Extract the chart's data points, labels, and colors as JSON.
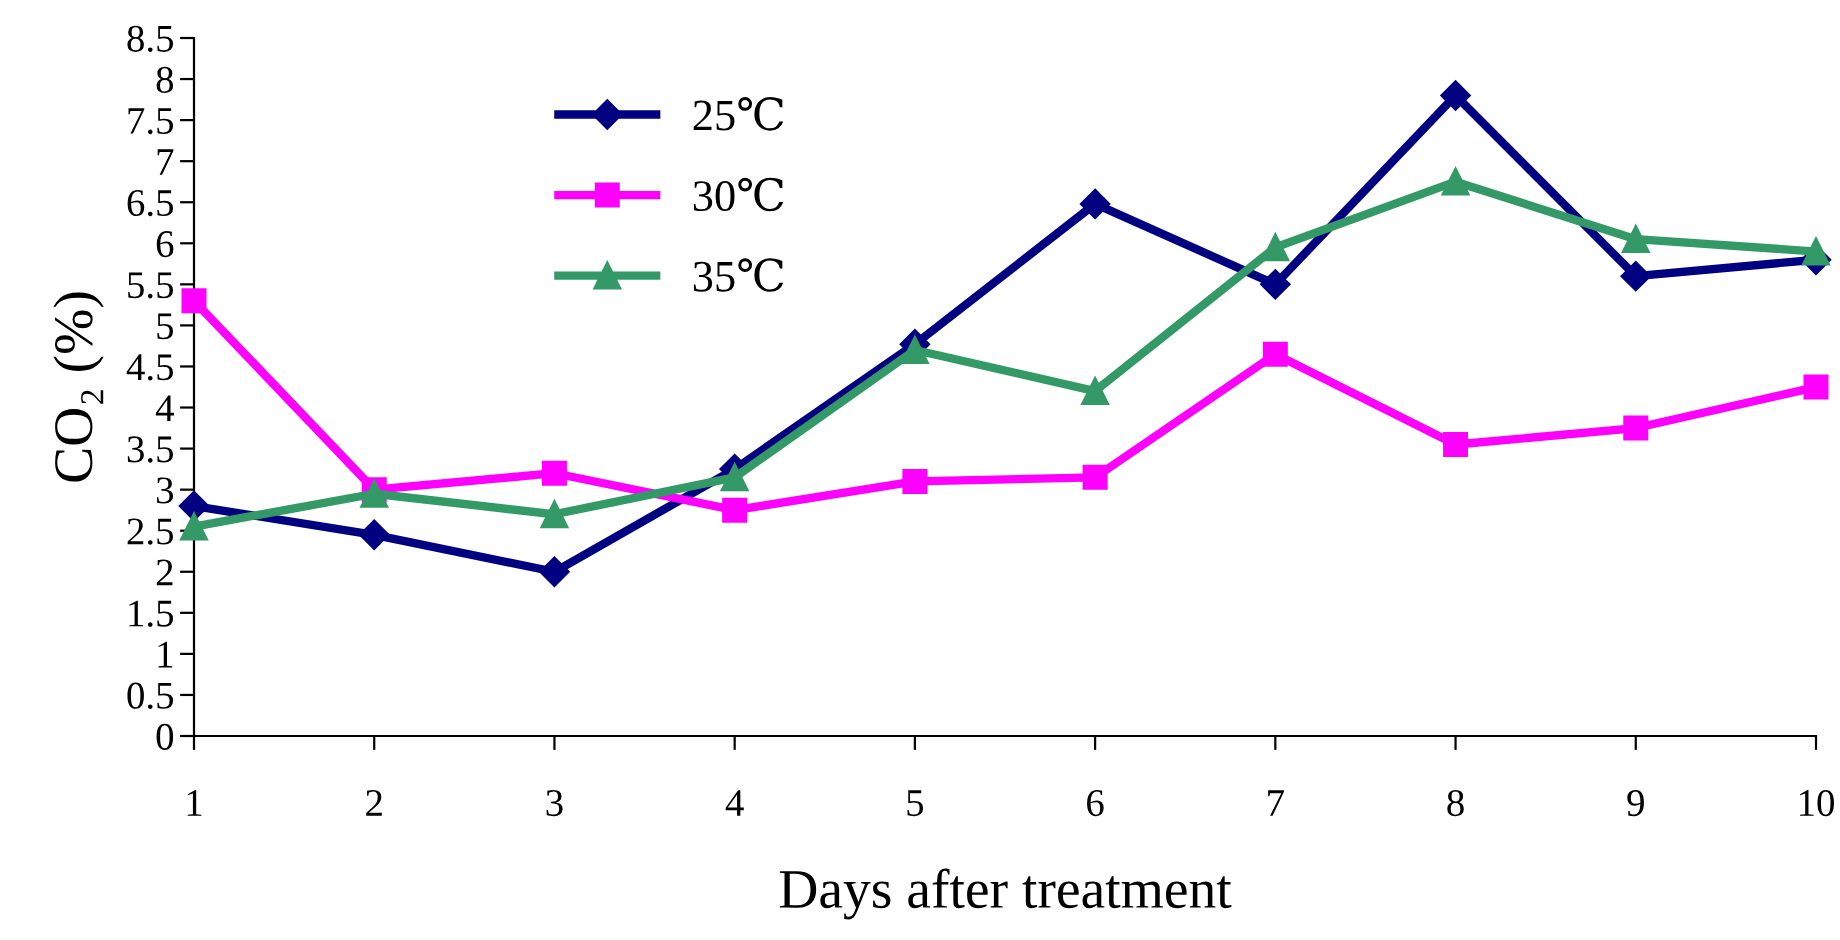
{
  "chart_data": {
    "type": "line",
    "xlabel": "Days after treatment",
    "ylabel": "CO₂ (%)",
    "x": [
      1,
      2,
      3,
      4,
      5,
      6,
      7,
      8,
      9,
      10
    ],
    "xlim": [
      1,
      10
    ],
    "xticks": [
      1,
      2,
      3,
      4,
      5,
      6,
      7,
      8,
      9,
      10
    ],
    "ylim": [
      0,
      8.5
    ],
    "yticks": [
      0,
      0.5,
      1,
      1.5,
      2,
      2.5,
      3,
      3.5,
      4,
      4.5,
      5,
      5.5,
      6,
      6.5,
      7,
      7.5,
      8,
      8.5
    ],
    "grid": false,
    "legend": "top left",
    "line_style": "solid",
    "series": [
      {
        "name": "25℃",
        "color": "#000080",
        "marker": "diamond",
        "values": [
          2.8,
          2.45,
          2.0,
          3.25,
          4.77,
          6.48,
          5.5,
          7.8,
          5.6,
          5.8
        ]
      },
      {
        "name": "30℃",
        "color": "#ff00ff",
        "marker": "square",
        "values": [
          5.3,
          3.0,
          3.2,
          2.75,
          3.1,
          3.15,
          4.65,
          3.55,
          3.75,
          4.25
        ]
      },
      {
        "name": "35℃",
        "color": "#339966",
        "marker": "triangle",
        "values": [
          2.55,
          2.95,
          2.7,
          3.15,
          4.7,
          4.2,
          5.95,
          6.75,
          6.05,
          5.9
        ]
      }
    ]
  }
}
